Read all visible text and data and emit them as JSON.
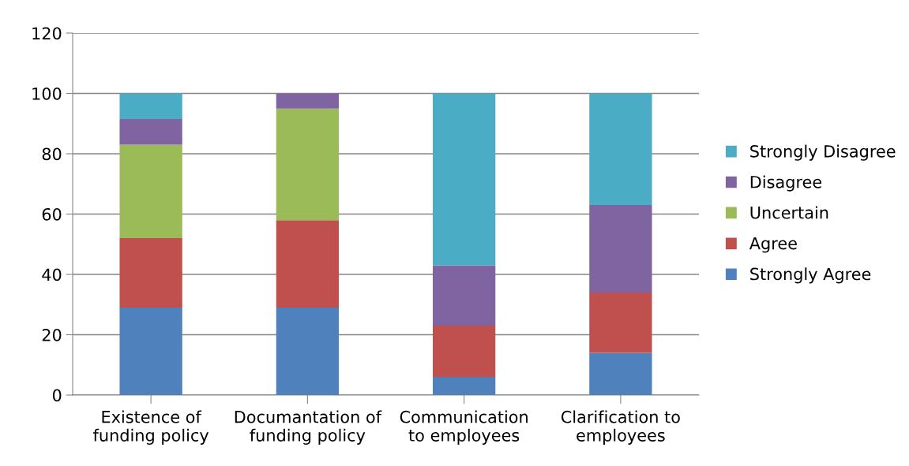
{
  "chart_data": {
    "type": "bar",
    "stacked": true,
    "categories": [
      "Existence of\nfunding policy",
      "Documantation of\nfunding policy",
      "Communication\nto employees",
      "Clarification to\nemployees"
    ],
    "series": [
      {
        "name": "Strongly Agree",
        "color": "#4f81bd",
        "values": [
          29,
          29,
          6,
          14
        ]
      },
      {
        "name": "Agree",
        "color": "#c0504d",
        "values": [
          23,
          29,
          17,
          20
        ]
      },
      {
        "name": "Uncertain",
        "color": "#9bbb59",
        "values": [
          31,
          37,
          0,
          0
        ]
      },
      {
        "name": "Disagree",
        "color": "#8064a2",
        "values": [
          8.5,
          5,
          20,
          29
        ]
      },
      {
        "name": "Strongly Disagree",
        "color": "#4bacc6",
        "values": [
          8.5,
          0,
          57,
          37
        ]
      }
    ],
    "ylim": [
      0,
      120
    ],
    "yticks": [
      0,
      20,
      40,
      60,
      80,
      100,
      120
    ],
    "grid": "y",
    "legend": "right"
  }
}
